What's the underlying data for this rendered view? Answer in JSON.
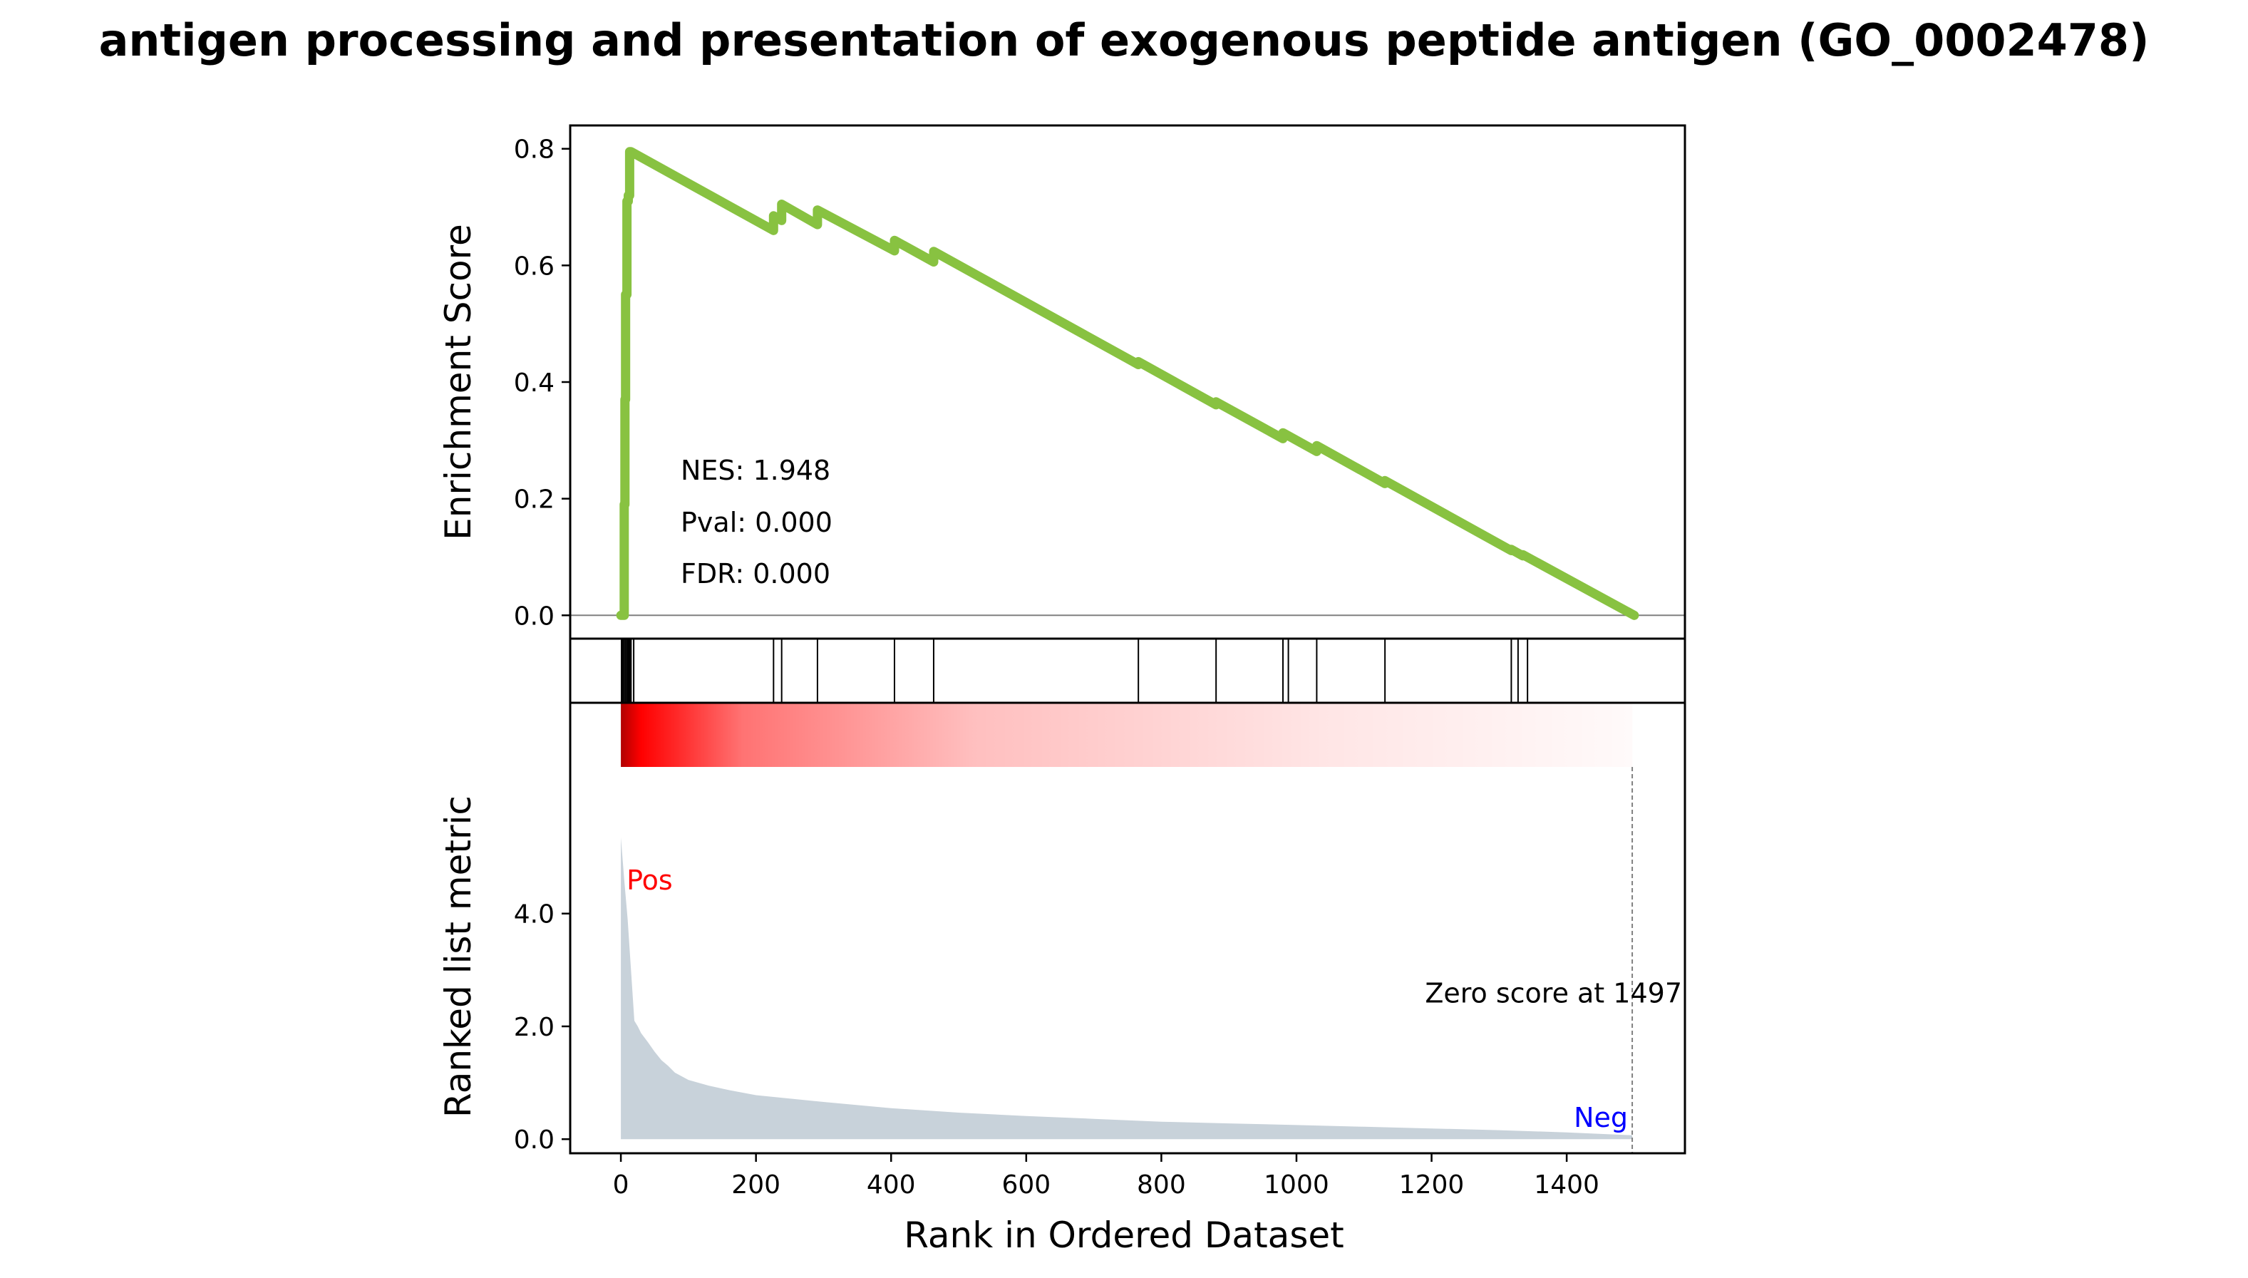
{
  "chart_data": {
    "type": "line",
    "title": "antigen processing and presentation of exogenous peptide antigen (GO_0002478)",
    "xlabel": "Rank in Ordered Dataset",
    "ylabel_top": "Enrichment Score",
    "ylabel_bottom": "Ranked list metric",
    "xlim": [
      -75,
      1575
    ],
    "x_ticks": [
      0,
      200,
      400,
      600,
      800,
      1000,
      1200,
      1400
    ],
    "x_tick_labels": [
      "0",
      "200",
      "400",
      "600",
      "800",
      "1000",
      "1200",
      "1400"
    ],
    "es_ylim": [
      -0.04,
      0.84
    ],
    "es_ticks": [
      0.0,
      0.2,
      0.4,
      0.6,
      0.8
    ],
    "es_tick_labels": [
      "0.0",
      "0.2",
      "0.4",
      "0.6",
      "0.8"
    ],
    "metric_ylim": [
      -0.25,
      6.6
    ],
    "metric_ticks": [
      0.0,
      2.0,
      4.0
    ],
    "metric_tick_labels": [
      "0.0",
      "2.0",
      "4.0"
    ],
    "stats": {
      "nes": "NES: 1.948",
      "pval": "Pval: 0.000",
      "fdr": "FDR: 0.000"
    },
    "series": [
      {
        "color": "#88c241",
        "x": [
          0,
          5,
          5,
          6,
          6,
          7,
          7,
          9,
          9,
          11,
          11,
          13,
          13,
          15,
          15,
          226,
          226,
          238,
          238,
          291,
          291,
          405,
          405,
          463,
          463,
          766,
          766,
          881,
          881,
          980,
          980,
          1030,
          1030,
          1131,
          1131,
          1318,
          1318,
          1335,
          1335,
          1500
        ],
        "y": [
          0.0,
          0.0,
          0.19,
          0.19,
          0.37,
          0.37,
          0.55,
          0.55,
          0.71,
          0.71,
          0.72,
          0.72,
          0.795,
          0.795,
          0.795,
          0.66,
          0.685,
          0.677,
          0.705,
          0.67,
          0.695,
          0.625,
          0.643,
          0.606,
          0.624,
          0.43,
          0.435,
          0.361,
          0.366,
          0.303,
          0.313,
          0.281,
          0.291,
          0.226,
          0.231,
          0.111,
          0.113,
          0.102,
          0.104,
          0.0
        ]
      }
    ],
    "hit_positions": [
      1,
      3,
      5,
      7,
      9,
      11,
      13,
      15,
      19,
      226,
      238,
      291,
      405,
      463,
      766,
      881,
      980,
      988,
      1030,
      1131,
      1318,
      1328,
      1342
    ],
    "ranked_metric": {
      "x": [
        0,
        2,
        5,
        10,
        15,
        20,
        25,
        30,
        40,
        50,
        60,
        70,
        80,
        100,
        130,
        160,
        200,
        300,
        400,
        500,
        600,
        700,
        800,
        900,
        1000,
        1100,
        1200,
        1300,
        1400,
        1497
      ],
      "y": [
        5.35,
        5.05,
        4.6,
        3.9,
        3.0,
        2.1,
        2.0,
        1.88,
        1.72,
        1.55,
        1.4,
        1.3,
        1.18,
        1.05,
        0.95,
        0.87,
        0.78,
        0.66,
        0.55,
        0.47,
        0.41,
        0.36,
        0.31,
        0.28,
        0.25,
        0.22,
        0.19,
        0.16,
        0.12,
        0.07
      ]
    },
    "zero_score_line_x": 1497,
    "annotations": {
      "pos_label": "Pos",
      "neg_label": "Neg",
      "zero_score_label": "Zero score at 1497"
    },
    "colors": {
      "es_line": "#88c241",
      "metric_fill": "#c8d2da",
      "pos": "#ff0000",
      "neg": "#0000ff",
      "heat_strong": "#ff0000",
      "heat_weak": "#ffffff"
    }
  }
}
